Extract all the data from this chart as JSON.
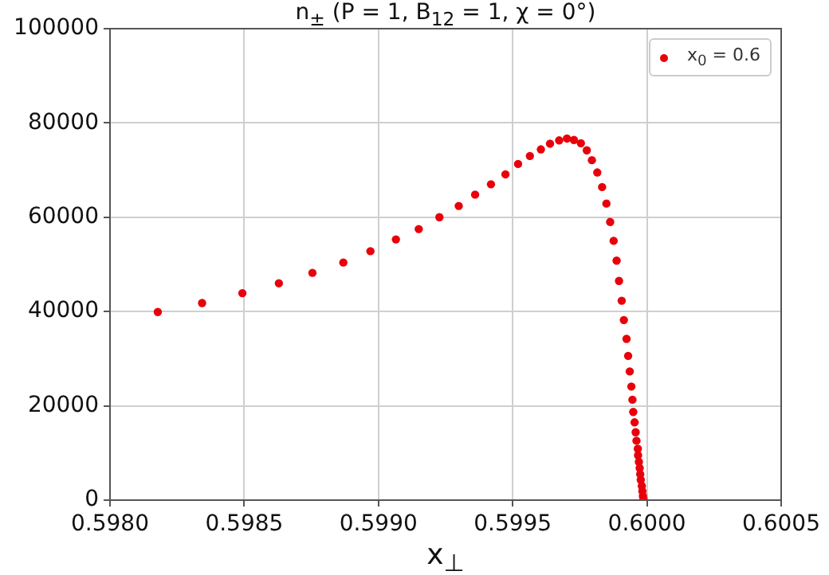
{
  "chart_data": {
    "type": "scatter",
    "title": "n$_{±}$ (P = 1, B$_{12}$ = 1, χ = 0°)",
    "xlabel": "x$_{⊥}$",
    "xlim": [
      0.598,
      0.6005
    ],
    "xticks": [
      {
        "value": 0.598,
        "label": "0.5980"
      },
      {
        "value": 0.5985,
        "label": "0.5985"
      },
      {
        "value": 0.599,
        "label": "0.5990"
      },
      {
        "value": 0.5995,
        "label": "0.5995"
      },
      {
        "value": 0.6,
        "label": "0.6000"
      },
      {
        "value": 0.6005,
        "label": "0.6005"
      }
    ],
    "ylim": [
      0,
      100000
    ],
    "yticks": [
      0,
      20000,
      40000,
      60000,
      80000,
      100000
    ],
    "grid": true,
    "legend": "top right",
    "marker": "circle",
    "series": [
      {
        "name": "x$_{0}$ = 0.6",
        "color": "#e8000b",
        "x": [
          0.598178,
          0.598343,
          0.598493,
          0.598629,
          0.598754,
          0.598869,
          0.59897,
          0.599065,
          0.59915,
          0.599227,
          0.599299,
          0.59936,
          0.599419,
          0.599473,
          0.59952,
          0.599564,
          0.599605,
          0.599639,
          0.599673,
          0.599702,
          0.599728,
          0.599754,
          0.599776,
          0.599795,
          0.599815,
          0.599833,
          0.599849,
          0.599863,
          0.599876,
          0.599887,
          0.599896,
          0.599906,
          0.599914,
          0.599924,
          0.59993,
          0.599936,
          0.599942,
          0.599946,
          0.599949,
          0.599954,
          0.599958,
          0.599961,
          0.599966,
          0.599967,
          0.59997,
          0.599973,
          0.599975,
          0.599977,
          0.599981,
          0.599983,
          0.599985,
          0.599987
        ],
        "values": [
          39900,
          41800,
          43900,
          46000,
          48200,
          50400,
          52800,
          55300,
          57500,
          60000,
          62400,
          64800,
          67000,
          69100,
          71300,
          73000,
          74400,
          75600,
          76300,
          76700,
          76400,
          75700,
          74200,
          72100,
          69500,
          66400,
          62900,
          59000,
          55000,
          50800,
          46500,
          42300,
          38200,
          34200,
          30600,
          27300,
          24100,
          21300,
          18700,
          16500,
          14400,
          12600,
          10900,
          9500,
          8100,
          6800,
          5500,
          4300,
          3000,
          1900,
          900,
          200
        ]
      }
    ]
  }
}
